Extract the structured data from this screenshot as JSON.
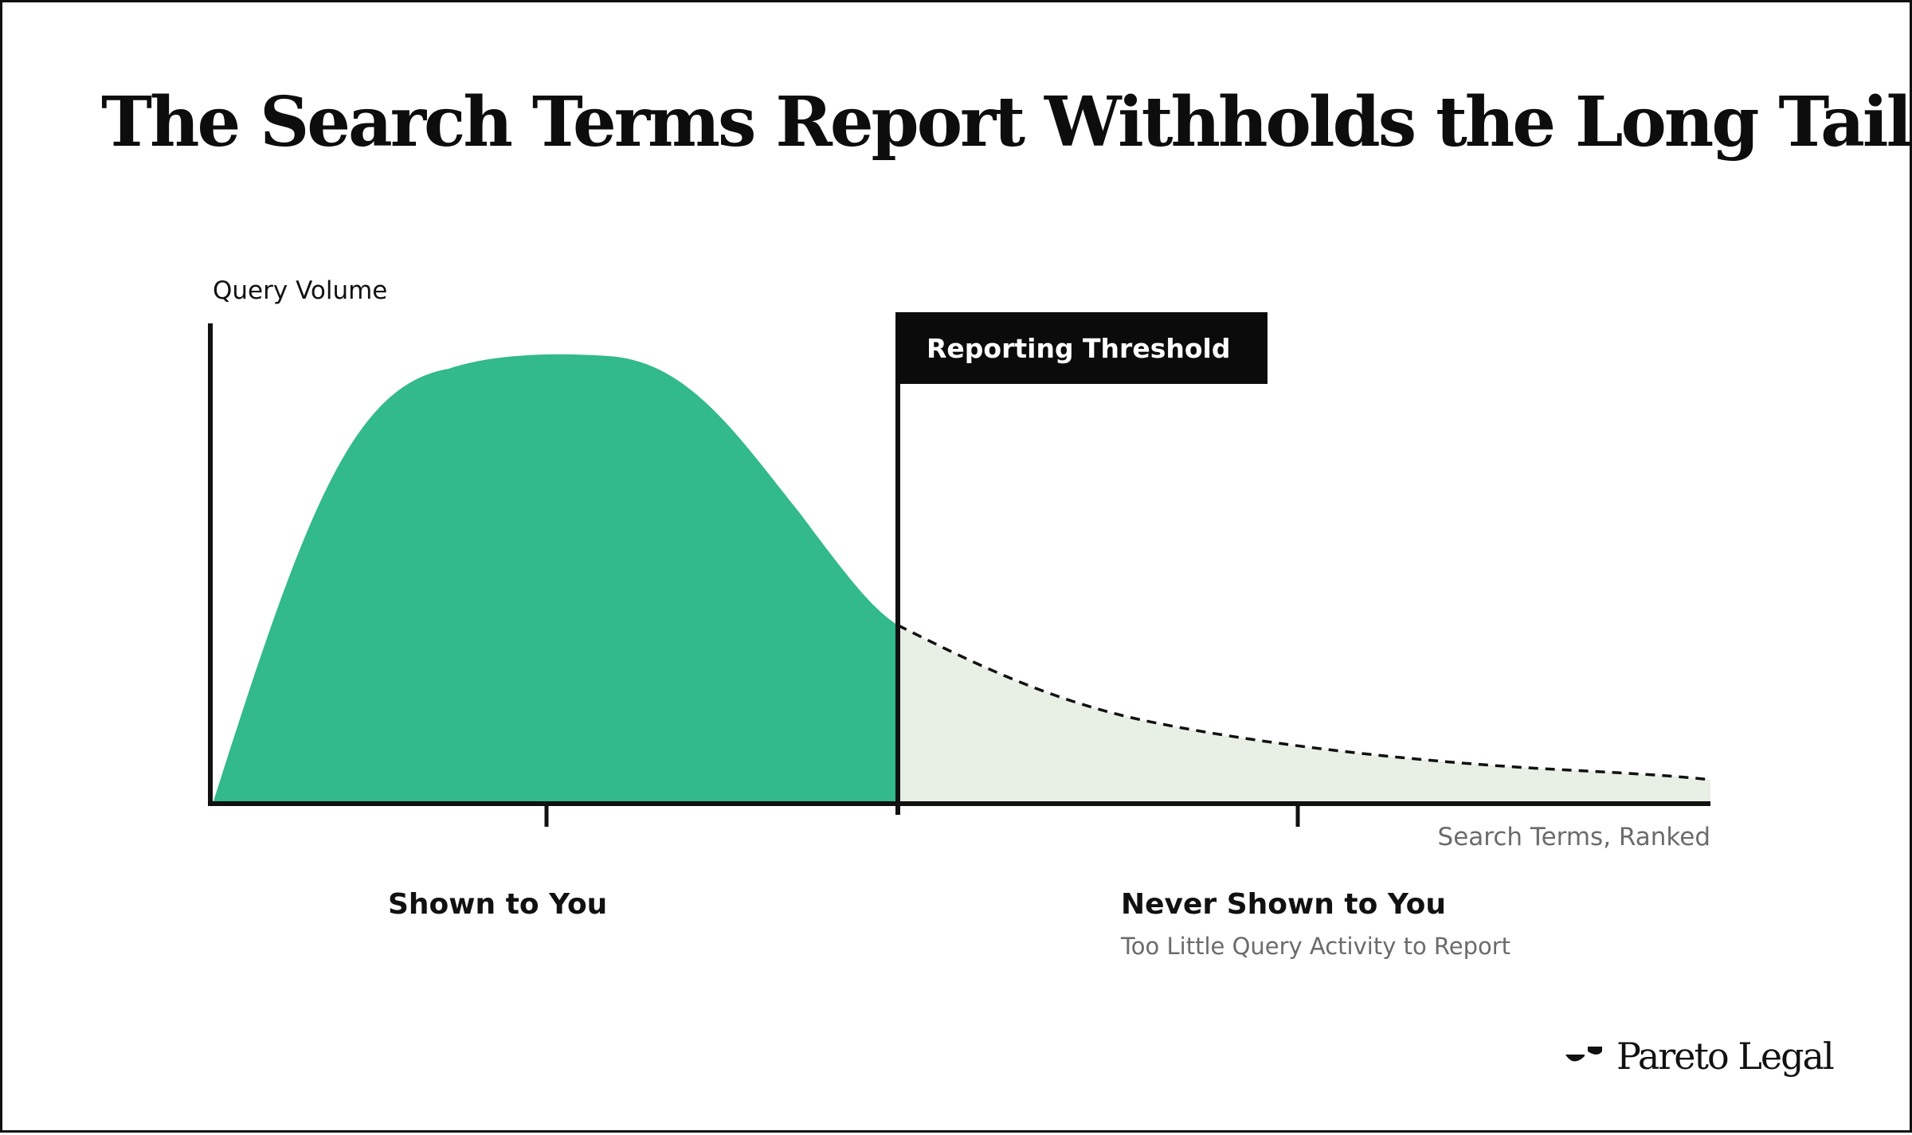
{
  "title": "The Search Terms Report Withholds the Long Tail",
  "chart": {
    "y_axis_label": "Query Volume",
    "x_axis_label": "Search Terms, Ranked",
    "threshold_label": "Reporting Threshold",
    "regions": {
      "shown": {
        "label": "Shown to You"
      },
      "never_shown": {
        "label": "Never Shown to You",
        "sublabel": "Too Little Query Activity to Report"
      }
    },
    "colors": {
      "shown_fill": "#32b98c",
      "hidden_fill": "#e8efe5",
      "axis": "#111111",
      "threshold_flag": "#0b0b0b"
    }
  },
  "brand": {
    "name": "Pareto Legal",
    "logo_icon": "pareto-legal-logo-icon"
  }
}
